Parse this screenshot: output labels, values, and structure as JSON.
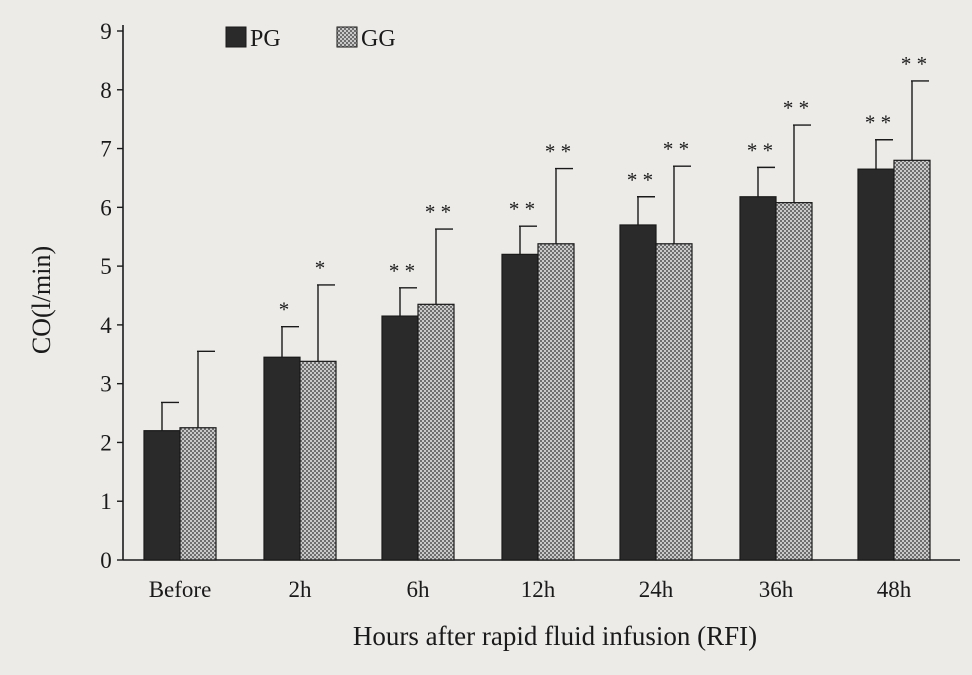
{
  "chart_data": {
    "type": "bar",
    "ylabel": "CO(l/min)",
    "xlabel": "Hours after rapid fluid infusion (RFI)",
    "ylim": [
      0,
      9
    ],
    "yticks": [
      0,
      1,
      2,
      3,
      4,
      5,
      6,
      7,
      8,
      9
    ],
    "categories": [
      "Before",
      "2h",
      "6h",
      "12h",
      "24h",
      "36h",
      "48h"
    ],
    "legend_position": "top-left",
    "series": [
      {
        "name": "PG",
        "fill": "solid-dark",
        "color": "#2a2a2a",
        "values": [
          2.2,
          3.45,
          4.15,
          5.2,
          5.7,
          6.18,
          6.65
        ],
        "error": [
          0.48,
          0.52,
          0.48,
          0.48,
          0.48,
          0.5,
          0.5
        ],
        "significance": [
          "",
          "*",
          "* *",
          "* *",
          "* *",
          "* *",
          "* *"
        ]
      },
      {
        "name": "GG",
        "fill": "checkered-gray",
        "color": "#8a8a8a",
        "values": [
          2.25,
          3.38,
          4.35,
          5.38,
          5.38,
          6.08,
          6.8
        ],
        "error": [
          1.3,
          1.3,
          1.28,
          1.28,
          1.32,
          1.32,
          1.35
        ],
        "significance": [
          "",
          "*",
          "* *",
          "* *",
          "* *",
          "* *",
          "* *"
        ]
      }
    ]
  }
}
